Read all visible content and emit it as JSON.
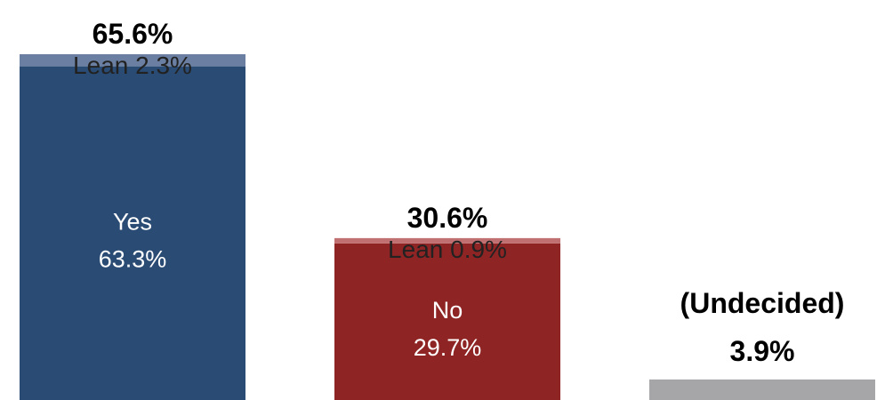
{
  "chart_data": {
    "type": "bar",
    "stacked": true,
    "categories": [
      "Yes",
      "No",
      "(Undecided)"
    ],
    "bars": [
      {
        "category": "Yes",
        "total": 65.6,
        "total_label": "65.6%",
        "firm": 63.3,
        "firm_label": "63.3%",
        "lean": 2.3,
        "lean_label": "Lean 2.3%",
        "firm_color": "#2a4b73",
        "lean_color": "#6a7fa1"
      },
      {
        "category": "No",
        "total": 30.6,
        "total_label": "30.6%",
        "firm": 29.7,
        "firm_label": "29.7%",
        "lean": 0.9,
        "lean_label": "Lean 0.9%",
        "firm_color": "#8e2424",
        "lean_color": "#c07070"
      },
      {
        "category": "(Undecided)",
        "total": 3.9,
        "total_label": "3.9%",
        "color": "#a6a6a8"
      }
    ],
    "ylim": [
      0,
      70
    ],
    "grid": false,
    "legend": "none"
  }
}
